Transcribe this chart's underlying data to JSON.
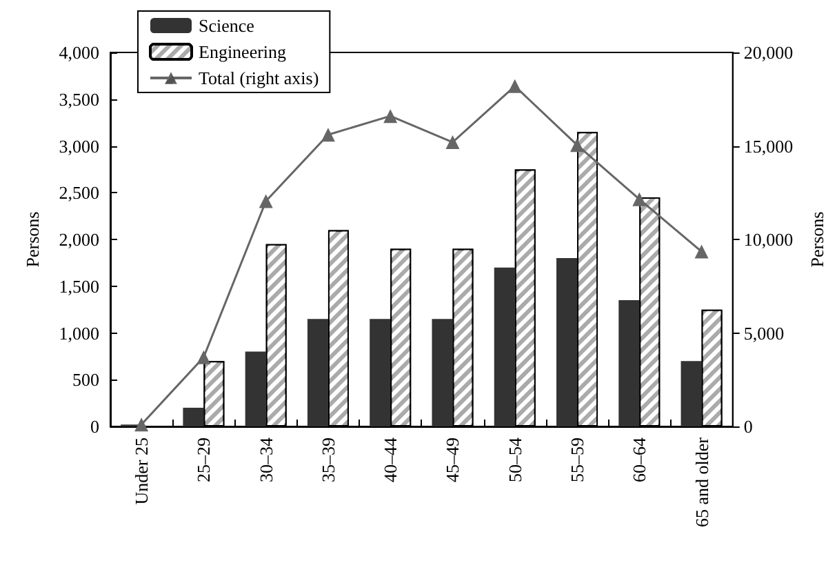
{
  "chart_data": {
    "type": "bar",
    "ylabel": "Persons",
    "y2label": "Persons",
    "categories": [
      "Under 25",
      "25–29",
      "30–34",
      "35–39",
      "40–44",
      "45–49",
      "50–54",
      "55–59",
      "60–64",
      "65 and older"
    ],
    "series": [
      {
        "name": "Science",
        "color": "#333333",
        "values": [
          20,
          200,
          800,
          1150,
          1150,
          1150,
          1700,
          1800,
          1350,
          700
        ]
      },
      {
        "name": "Engineering",
        "color": "#aaaaaa",
        "values": [
          0,
          700,
          1950,
          2100,
          1900,
          1900,
          2750,
          3150,
          2450,
          1250
        ]
      },
      {
        "name": "Total (right axis)",
        "type": "line",
        "axis": "y2",
        "color": "#666666",
        "marker": "triangle",
        "values": [
          100,
          3700,
          12050,
          15600,
          16600,
          15200,
          18200,
          15050,
          12150,
          9350
        ]
      }
    ],
    "ylim": [
      0,
      4000
    ],
    "yticks": [
      {
        "value": 0,
        "label": "0"
      },
      {
        "value": 500,
        "label": "500"
      },
      {
        "value": 1000,
        "label": "1,000"
      },
      {
        "value": 1500,
        "label": "1,500"
      },
      {
        "value": 2000,
        "label": "2,000"
      },
      {
        "value": 2500,
        "label": "2,500"
      },
      {
        "value": 3000,
        "label": "3,000"
      },
      {
        "value": 3500,
        "label": "3,500"
      },
      {
        "value": 4000,
        "label": "4,000"
      }
    ],
    "y2lim": [
      0,
      20000
    ],
    "y2ticks": [
      {
        "value": 0,
        "label": "0"
      },
      {
        "value": 5000,
        "label": "5,000"
      },
      {
        "value": 10000,
        "label": "10,000"
      },
      {
        "value": 15000,
        "label": "15,000"
      },
      {
        "value": 20000,
        "label": "20,000"
      }
    ],
    "grid": false,
    "legend": "top left"
  }
}
